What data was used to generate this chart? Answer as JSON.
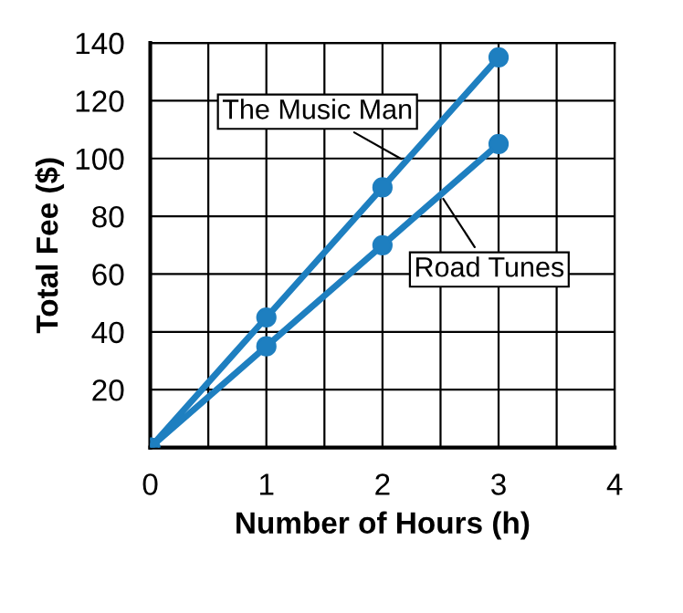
{
  "chart_data": {
    "type": "line",
    "xlabel": "Number of Hours (h)",
    "ylabel": "Total Fee ($)",
    "x": [
      0,
      1,
      2,
      3
    ],
    "series": [
      {
        "name": "The Music Man",
        "color": "#1e7fc0",
        "values": [
          0,
          45,
          90,
          135
        ]
      },
      {
        "name": "Road Tunes",
        "color": "#1e7fc0",
        "values": [
          0,
          35,
          70,
          105
        ]
      }
    ],
    "xlim": [
      0,
      4
    ],
    "ylim": [
      0,
      140
    ],
    "xticks": [
      0,
      {
        "value": 0.5,
        "label": null
      },
      1,
      {
        "value": 1.5,
        "label": null
      },
      2,
      {
        "value": 2.5,
        "label": null
      },
      3,
      {
        "value": 3.5,
        "label": null
      },
      4
    ],
    "yticks": [
      {
        "value": 0,
        "label": null
      },
      20,
      40,
      60,
      80,
      100,
      120,
      140
    ],
    "grid": true,
    "legend": false,
    "marker": "circle",
    "line_style": "solid"
  }
}
